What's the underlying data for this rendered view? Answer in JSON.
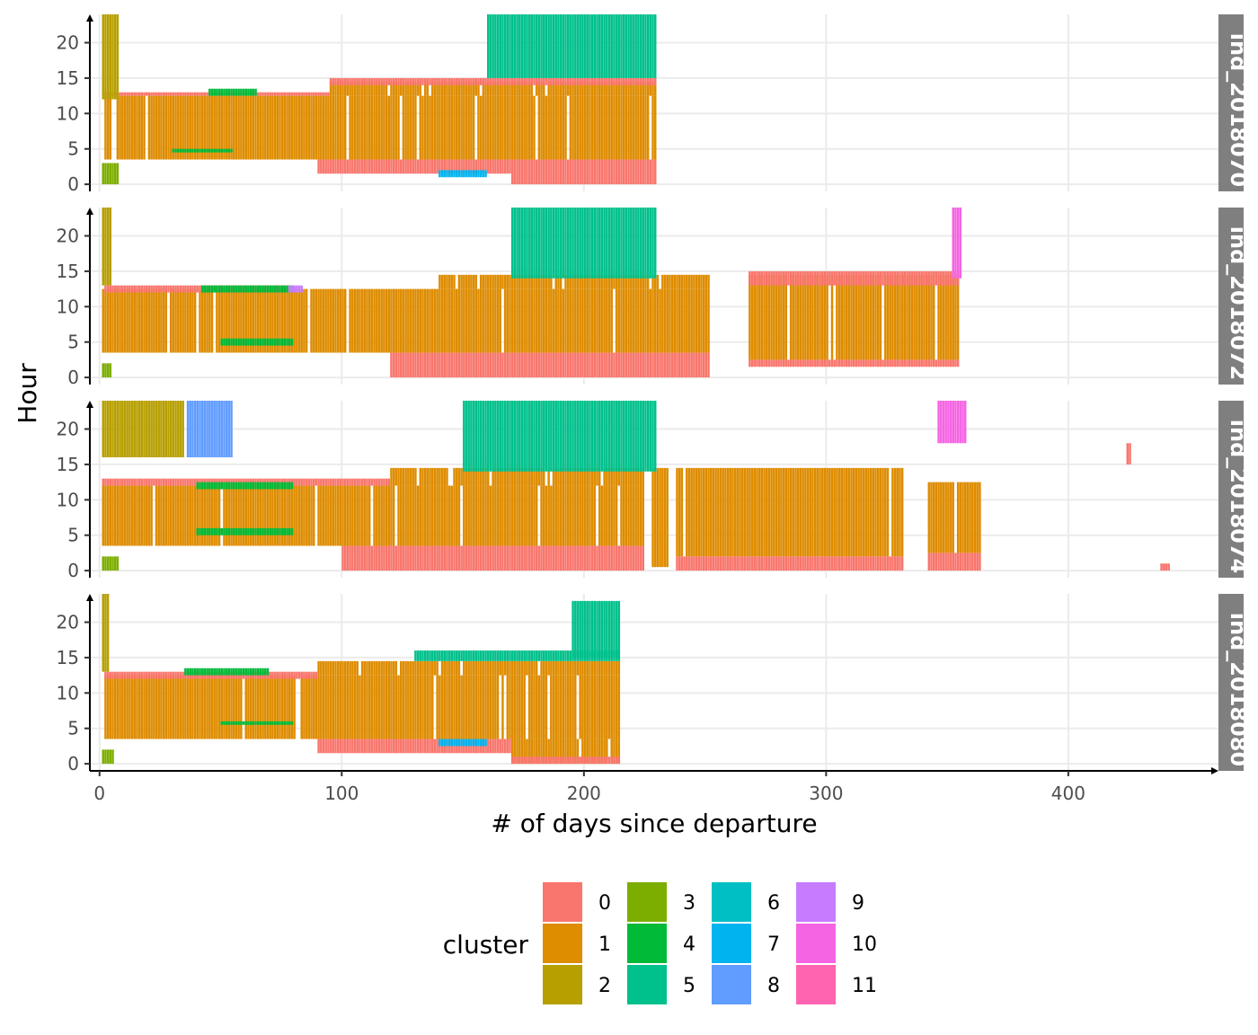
{
  "chart_data": {
    "type": "heatmap",
    "xlabel": "# of days since departure",
    "ylabel": "Hour",
    "xlim": [
      -4,
      462
    ],
    "ylim": [
      -1,
      24
    ],
    "x_ticks": [
      0,
      100,
      200,
      300,
      400
    ],
    "y_ticks": [
      0,
      5,
      10,
      15,
      20
    ],
    "grid": true,
    "legend": {
      "title": "cluster",
      "placement": "bottom",
      "entries": [
        {
          "label": "0",
          "color": "#F8766D"
        },
        {
          "label": "1",
          "color": "#DE8C00"
        },
        {
          "label": "2",
          "color": "#B79F00"
        },
        {
          "label": "3",
          "color": "#7CAE00"
        },
        {
          "label": "4",
          "color": "#00BA38"
        },
        {
          "label": "5",
          "color": "#00C08B"
        },
        {
          "label": "6",
          "color": "#00BFC4"
        },
        {
          "label": "7",
          "color": "#00B4F0"
        },
        {
          "label": "8",
          "color": "#619CFF"
        },
        {
          "label": "9",
          "color": "#C77CFF"
        },
        {
          "label": "10",
          "color": "#F564E3"
        },
        {
          "label": "11",
          "color": "#FF64B0"
        }
      ]
    },
    "panels": [
      {
        "label": "ind_2018070",
        "blocks": [
          {
            "x0": 2,
            "x1": 230,
            "y0": 3.5,
            "y1": 12.5,
            "cluster": "1"
          },
          {
            "x0": 95,
            "x1": 230,
            "y0": 12.5,
            "y1": 14.5,
            "cluster": "1"
          },
          {
            "x0": 2,
            "x1": 95,
            "y0": 12.5,
            "y1": 13,
            "cluster": "0"
          },
          {
            "x0": 95,
            "x1": 230,
            "y0": 14,
            "y1": 15,
            "cluster": "0"
          },
          {
            "x0": 90,
            "x1": 170,
            "y0": 1.5,
            "y1": 3.5,
            "cluster": "0"
          },
          {
            "x0": 170,
            "x1": 230,
            "y0": 0,
            "y1": 3.5,
            "cluster": "0"
          },
          {
            "x0": 1,
            "x1": 8,
            "y0": 12,
            "y1": 24,
            "cluster": "2"
          },
          {
            "x0": 1,
            "x1": 8,
            "y0": 0,
            "y1": 3,
            "cluster": "3"
          },
          {
            "x0": 45,
            "x1": 65,
            "y0": 12.5,
            "y1": 13.5,
            "cluster": "4"
          },
          {
            "x0": 30,
            "x1": 55,
            "y0": 4.5,
            "y1": 5,
            "cluster": "4"
          },
          {
            "x0": 160,
            "x1": 230,
            "y0": 15,
            "y1": 24,
            "cluster": "5"
          },
          {
            "x0": 140,
            "x1": 160,
            "y0": 1,
            "y1": 2,
            "cluster": "7"
          }
        ]
      },
      {
        "label": "ind_2018072",
        "blocks": [
          {
            "x0": 1,
            "x1": 252,
            "y0": 3.5,
            "y1": 12.5,
            "cluster": "1"
          },
          {
            "x0": 140,
            "x1": 252,
            "y0": 12.5,
            "y1": 14.5,
            "cluster": "1"
          },
          {
            "x0": 268,
            "x1": 355,
            "y0": 2.5,
            "y1": 14.5,
            "cluster": "1"
          },
          {
            "x0": 2,
            "x1": 80,
            "y0": 12,
            "y1": 13,
            "cluster": "0"
          },
          {
            "x0": 120,
            "x1": 252,
            "y0": 0,
            "y1": 3.5,
            "cluster": "0"
          },
          {
            "x0": 268,
            "x1": 355,
            "y0": 1.5,
            "y1": 2.5,
            "cluster": "0"
          },
          {
            "x0": 268,
            "x1": 355,
            "y0": 13,
            "y1": 15,
            "cluster": "0"
          },
          {
            "x0": 1,
            "x1": 5,
            "y0": 13,
            "y1": 24,
            "cluster": "2"
          },
          {
            "x0": 1,
            "x1": 5,
            "y0": 0,
            "y1": 2,
            "cluster": "3"
          },
          {
            "x0": 42,
            "x1": 80,
            "y0": 12,
            "y1": 13,
            "cluster": "4"
          },
          {
            "x0": 50,
            "x1": 80,
            "y0": 4.5,
            "y1": 5.5,
            "cluster": "4"
          },
          {
            "x0": 170,
            "x1": 230,
            "y0": 14,
            "y1": 24,
            "cluster": "5"
          },
          {
            "x0": 78,
            "x1": 84,
            "y0": 12,
            "y1": 13,
            "cluster": "9"
          },
          {
            "x0": 352,
            "x1": 356,
            "y0": 14,
            "y1": 24,
            "cluster": "10"
          }
        ]
      },
      {
        "label": "ind_2018074",
        "blocks": [
          {
            "x0": 1,
            "x1": 225,
            "y0": 3.5,
            "y1": 12,
            "cluster": "1"
          },
          {
            "x0": 120,
            "x1": 225,
            "y0": 12,
            "y1": 14.5,
            "cluster": "1"
          },
          {
            "x0": 227,
            "x1": 235,
            "y0": 0.5,
            "y1": 14.5,
            "cluster": "1"
          },
          {
            "x0": 238,
            "x1": 332,
            "y0": 2,
            "y1": 14.5,
            "cluster": "1"
          },
          {
            "x0": 342,
            "x1": 364,
            "y0": 2.5,
            "y1": 12.5,
            "cluster": "1"
          },
          {
            "x0": 1,
            "x1": 120,
            "y0": 12,
            "y1": 13,
            "cluster": "0"
          },
          {
            "x0": 100,
            "x1": 225,
            "y0": 0,
            "y1": 3.5,
            "cluster": "0"
          },
          {
            "x0": 238,
            "x1": 332,
            "y0": 0,
            "y1": 2,
            "cluster": "0"
          },
          {
            "x0": 342,
            "x1": 364,
            "y0": 0,
            "y1": 2.5,
            "cluster": "0"
          },
          {
            "x0": 1,
            "x1": 35,
            "y0": 16,
            "y1": 24,
            "cluster": "2"
          },
          {
            "x0": 1,
            "x1": 8,
            "y0": 0,
            "y1": 2,
            "cluster": "3"
          },
          {
            "x0": 40,
            "x1": 80,
            "y0": 11.5,
            "y1": 12.5,
            "cluster": "4"
          },
          {
            "x0": 40,
            "x1": 80,
            "y0": 5,
            "y1": 6,
            "cluster": "4"
          },
          {
            "x0": 150,
            "x1": 230,
            "y0": 14,
            "y1": 24,
            "cluster": "5"
          },
          {
            "x0": 36,
            "x1": 55,
            "y0": 16,
            "y1": 24,
            "cluster": "8"
          },
          {
            "x0": 346,
            "x1": 358,
            "y0": 18,
            "y1": 24,
            "cluster": "10"
          },
          {
            "x0": 424,
            "x1": 426,
            "y0": 15,
            "y1": 18,
            "cluster": "0"
          },
          {
            "x0": 438,
            "x1": 442,
            "y0": 0,
            "y1": 1,
            "cluster": "0"
          }
        ]
      },
      {
        "label": "ind_2018080",
        "blocks": [
          {
            "x0": 2,
            "x1": 215,
            "y0": 3.5,
            "y1": 12.5,
            "cluster": "1"
          },
          {
            "x0": 90,
            "x1": 215,
            "y0": 12.5,
            "y1": 14.5,
            "cluster": "1"
          },
          {
            "x0": 170,
            "x1": 215,
            "y0": 0,
            "y1": 3.5,
            "cluster": "1"
          },
          {
            "x0": 2,
            "x1": 90,
            "y0": 12,
            "y1": 13,
            "cluster": "0"
          },
          {
            "x0": 90,
            "x1": 170,
            "y0": 1.5,
            "y1": 3.5,
            "cluster": "0"
          },
          {
            "x0": 170,
            "x1": 215,
            "y0": 0,
            "y1": 1,
            "cluster": "0"
          },
          {
            "x0": 1,
            "x1": 4,
            "y0": 13,
            "y1": 24,
            "cluster": "2"
          },
          {
            "x0": 1,
            "x1": 6,
            "y0": 0,
            "y1": 2,
            "cluster": "3"
          },
          {
            "x0": 35,
            "x1": 70,
            "y0": 12.5,
            "y1": 13.5,
            "cluster": "4"
          },
          {
            "x0": 50,
            "x1": 80,
            "y0": 5.5,
            "y1": 6,
            "cluster": "4"
          },
          {
            "x0": 130,
            "x1": 215,
            "y0": 14.5,
            "y1": 16,
            "cluster": "5"
          },
          {
            "x0": 195,
            "x1": 215,
            "y0": 15,
            "y1": 23,
            "cluster": "5"
          },
          {
            "x0": 140,
            "x1": 160,
            "y0": 2.5,
            "y1": 3.5,
            "cluster": "7"
          }
        ]
      }
    ]
  }
}
